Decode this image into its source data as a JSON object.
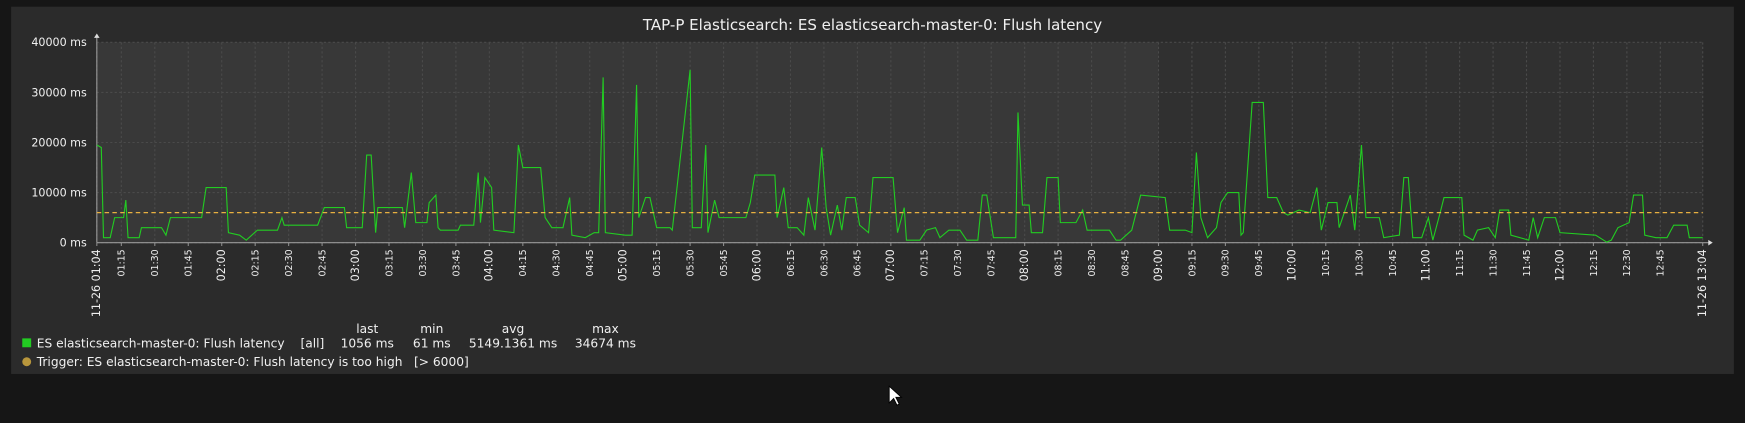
{
  "chart_data": {
    "type": "line",
    "title": "TAP-P Elasticsearch: ES elasticsearch-master-0: Flush latency",
    "ylim": [
      0,
      40000
    ],
    "yticks": [
      {
        "value": 0,
        "label": "0 ms"
      },
      {
        "value": 10000,
        "label": "10000 ms"
      },
      {
        "value": 20000,
        "label": "20000 ms"
      },
      {
        "value": 30000,
        "label": "30000 ms"
      },
      {
        "value": 40000,
        "label": "40000 ms"
      }
    ],
    "xlim": [
      64,
      784
    ],
    "xticks": [
      {
        "value": 75,
        "label": "01:15"
      },
      {
        "value": 90,
        "label": "01:30"
      },
      {
        "value": 105,
        "label": "01:45"
      },
      {
        "value": 135,
        "label": "02:15"
      },
      {
        "value": 150,
        "label": "02:30"
      },
      {
        "value": 165,
        "label": "02:45"
      },
      {
        "value": 195,
        "label": "03:15"
      },
      {
        "value": 210,
        "label": "03:30"
      },
      {
        "value": 225,
        "label": "03:45"
      },
      {
        "value": 255,
        "label": "04:15"
      },
      {
        "value": 270,
        "label": "04:30"
      },
      {
        "value": 285,
        "label": "04:45"
      },
      {
        "value": 315,
        "label": "05:15"
      },
      {
        "value": 330,
        "label": "05:30"
      },
      {
        "value": 345,
        "label": "05:45"
      },
      {
        "value": 375,
        "label": "06:15"
      },
      {
        "value": 390,
        "label": "06:30"
      },
      {
        "value": 405,
        "label": "06:45"
      },
      {
        "value": 435,
        "label": "07:15"
      },
      {
        "value": 450,
        "label": "07:30"
      },
      {
        "value": 465,
        "label": "07:45"
      },
      {
        "value": 495,
        "label": "08:15"
      },
      {
        "value": 510,
        "label": "08:30"
      },
      {
        "value": 525,
        "label": "08:45"
      },
      {
        "value": 555,
        "label": "09:15"
      },
      {
        "value": 570,
        "label": "09:30"
      },
      {
        "value": 585,
        "label": "09:45"
      },
      {
        "value": 615,
        "label": "10:15"
      },
      {
        "value": 630,
        "label": "10:30"
      },
      {
        "value": 645,
        "label": "10:45"
      },
      {
        "value": 675,
        "label": "11:15"
      },
      {
        "value": 690,
        "label": "11:30"
      },
      {
        "value": 705,
        "label": "11:45"
      },
      {
        "value": 735,
        "label": "12:15"
      },
      {
        "value": 750,
        "label": "12:30"
      },
      {
        "value": 765,
        "label": "12:45"
      }
    ],
    "xticks_major": [
      {
        "value": 64,
        "label": "11-26 01:04"
      },
      {
        "value": 120,
        "label": "02:00"
      },
      {
        "value": 180,
        "label": "03:00"
      },
      {
        "value": 240,
        "label": "04:00"
      },
      {
        "value": 300,
        "label": "05:00"
      },
      {
        "value": 360,
        "label": "06:00"
      },
      {
        "value": 420,
        "label": "07:00"
      },
      {
        "value": 480,
        "label": "08:00"
      },
      {
        "value": 540,
        "label": "09:00"
      },
      {
        "value": 600,
        "label": "10:00"
      },
      {
        "value": 660,
        "label": "11:00"
      },
      {
        "value": 720,
        "label": "12:00"
      },
      {
        "value": 784,
        "label": "11-26 13:04"
      }
    ],
    "tick_color": "#ffffff",
    "major_tick_color": "#e05050",
    "grid": true,
    "working_time": [
      64,
      540
    ],
    "legend_columns": [
      "last",
      "min",
      "avg",
      "max"
    ],
    "series": [
      {
        "name": "ES elasticsearch-master-0: Flush latency",
        "color": "#22cc22",
        "func": "[all]",
        "stats": [
          "1056 ms",
          "61 ms",
          "5149.1361 ms",
          "34674 ms"
        ],
        "x": [
          64,
          66,
          67,
          70,
          72,
          76,
          77,
          78,
          83,
          84,
          93,
          95,
          97,
          111,
          113,
          122,
          123,
          128,
          131,
          136,
          145,
          147,
          148,
          163,
          166,
          175,
          176,
          183,
          185,
          187,
          189,
          190,
          201,
          202,
          205,
          207,
          212,
          213,
          216,
          217,
          218,
          226,
          227,
          233,
          235,
          236,
          238,
          241,
          242,
          251,
          253,
          255,
          263,
          265,
          268,
          273,
          276,
          277,
          283,
          287,
          289,
          291,
          292,
          301,
          304,
          306,
          307,
          310,
          312,
          315,
          321,
          322,
          330,
          331,
          335,
          337,
          338,
          341,
          343,
          355,
          357,
          359,
          368,
          369,
          372,
          374,
          378,
          381,
          383,
          386,
          389,
          391,
          393,
          396,
          398,
          400,
          404,
          406,
          410,
          412,
          421,
          423,
          426,
          427,
          433,
          436,
          440,
          442,
          446,
          451,
          454,
          459,
          461,
          463,
          466,
          476,
          477,
          479,
          482,
          483,
          488,
          490,
          495,
          496,
          503,
          506,
          508,
          518,
          521,
          523,
          528,
          532,
          543,
          545,
          552,
          555,
          557,
          559,
          562,
          566,
          568,
          571,
          576,
          577,
          578,
          582,
          587,
          589,
          593,
          596,
          598,
          603,
          608,
          611,
          613,
          616,
          620,
          621,
          626,
          628,
          631,
          633,
          639,
          641,
          648,
          650,
          652,
          654,
          658,
          661,
          663,
          666,
          668,
          676,
          677,
          681,
          683,
          688,
          691,
          693,
          697,
          698,
          706,
          708,
          710,
          713,
          718,
          720,
          736,
          741,
          743,
          746,
          751,
          753,
          757,
          758,
          763,
          768,
          771,
          777,
          778,
          784
        ],
        "values": [
          19500,
          19000,
          1000,
          1000,
          5000,
          5000,
          8500,
          1000,
          1000,
          3000,
          3000,
          1500,
          5000,
          5000,
          11000,
          11000,
          2000,
          1500,
          500,
          2500,
          2500,
          5000,
          3500,
          3500,
          7000,
          7000,
          3000,
          3000,
          17500,
          17500,
          2000,
          7000,
          7000,
          3000,
          14000,
          4000,
          4000,
          8000,
          9500,
          3000,
          2500,
          2500,
          3500,
          3500,
          14000,
          4000,
          13000,
          11000,
          2500,
          2000,
          19500,
          15000,
          15000,
          5000,
          3000,
          3000,
          9000,
          1500,
          1000,
          2000,
          2000,
          33000,
          2000,
          1500,
          1500,
          31500,
          5000,
          9000,
          9000,
          3000,
          3000,
          2500,
          34500,
          3000,
          3000,
          19500,
          2000,
          8500,
          5000,
          5000,
          8000,
          13500,
          13500,
          5000,
          11000,
          3000,
          3000,
          1500,
          9000,
          2500,
          19000,
          7000,
          1500,
          7500,
          2500,
          9000,
          9000,
          3500,
          2000,
          13000,
          13000,
          2000,
          7000,
          500,
          500,
          2500,
          3000,
          1000,
          2500,
          2500,
          500,
          500,
          9500,
          9500,
          1000,
          1000,
          26000,
          7500,
          7500,
          2000,
          2000,
          13000,
          13000,
          4000,
          4000,
          6500,
          2500,
          2500,
          500,
          500,
          2500,
          9500,
          9000,
          2500,
          2500,
          2000,
          18000,
          5000,
          1000,
          3000,
          8000,
          10000,
          10000,
          1500,
          2000,
          28000,
          28000,
          9000,
          9000,
          6000,
          5500,
          6500,
          6000,
          11000,
          2500,
          8000,
          8000,
          3000,
          9500,
          2500,
          19500,
          5000,
          5000,
          1000,
          1500,
          13000,
          13000,
          1000,
          1000,
          5000,
          500,
          5500,
          9000,
          9000,
          1500,
          500,
          2500,
          3000,
          1000,
          6500,
          6500,
          1500,
          500,
          5000,
          1000,
          5000,
          5000,
          2000,
          1500,
          100,
          500,
          3000,
          4000,
          9500,
          9500,
          1500,
          1000,
          1000,
          3500,
          3500,
          1000,
          1000
        ]
      }
    ],
    "trigger": {
      "name": "Trigger: ES elasticsearch-master-0: Flush latency is too high",
      "label": "[> 6000]",
      "value": 6000,
      "color": "#e8b040",
      "legend_color": "#b8963c"
    }
  }
}
